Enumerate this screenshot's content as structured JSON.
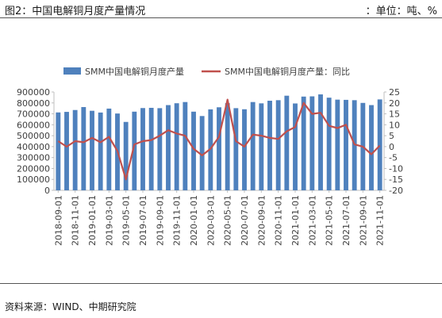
{
  "header": {
    "figure_title": "图2：中国电解铜月度产量情况",
    "unit": "：单位：吨、%"
  },
  "footer": {
    "source": "资料来源：WIND、中期研究院"
  },
  "colors": {
    "bar": "#4f81bd",
    "line": "#c0504d",
    "axis": "#bfbfbf",
    "text": "#404040"
  },
  "chart_data": {
    "type": "bar",
    "title": "",
    "xlabel": "",
    "ylabel": "",
    "legend_position": "top",
    "grid": false,
    "x_tick_labels": [
      "2018-09-01",
      "2018-11-01",
      "2019-01-01",
      "2019-03-01",
      "2019-05-01",
      "2019-07-01",
      "2019-09-01",
      "2019-11-01",
      "2020-01-01",
      "2020-03-01",
      "2020-05-01",
      "2020-07-01",
      "2020-09-01",
      "2020-11-01",
      "2021-01-01",
      "2021-03-01",
      "2021-05-01",
      "2021-07-01",
      "2021-09-01",
      "2021-11-01"
    ],
    "y_left": {
      "ylim": [
        0,
        900000
      ],
      "ticks": [
        0,
        100000,
        200000,
        300000,
        400000,
        500000,
        600000,
        700000,
        800000,
        900000
      ]
    },
    "y_right": {
      "ylim": [
        -20,
        25
      ],
      "ticks": [
        -20,
        -15,
        -10,
        -5,
        0,
        5,
        10,
        15,
        20,
        25
      ]
    },
    "categories": [
      "2018-09",
      "2018-10",
      "2018-11",
      "2018-12",
      "2019-01",
      "2019-02",
      "2019-03",
      "2019-04",
      "2019-05",
      "2019-06",
      "2019-07",
      "2019-08",
      "2019-09",
      "2019-10",
      "2019-11",
      "2019-12",
      "2020-01",
      "2020-02",
      "2020-03",
      "2020-04",
      "2020-05",
      "2020-06",
      "2020-07",
      "2020-08",
      "2020-09",
      "2020-10",
      "2020-11",
      "2020-12",
      "2021-01",
      "2021-02",
      "2021-03",
      "2021-04",
      "2021-05",
      "2021-06",
      "2021-07",
      "2021-08",
      "2021-09",
      "2021-10",
      "2021-11"
    ],
    "series": [
      {
        "name": "SMM中国电解铜月度产量",
        "type": "bar",
        "axis": "left",
        "values": [
          713000,
          718000,
          735000,
          762000,
          728000,
          712000,
          748000,
          703000,
          626000,
          720000,
          753000,
          755000,
          752000,
          780000,
          797000,
          808000,
          720000,
          680000,
          741000,
          760000,
          798000,
          752000,
          742000,
          808000,
          796000,
          820000,
          825000,
          866000,
          795000,
          858000,
          860000,
          878000,
          848000,
          830000,
          828000,
          825000,
          800000,
          780000,
          832000
        ]
      },
      {
        "name": "SMM中国电解铜月度产量：同比",
        "type": "line",
        "axis": "right",
        "values": [
          2.5,
          0,
          2.5,
          2,
          4,
          2,
          4.5,
          -2,
          -15,
          1,
          2.5,
          3,
          5,
          7.5,
          6,
          5,
          -1,
          -4,
          -1,
          4.5,
          21.5,
          2.5,
          0,
          5.5,
          5,
          4,
          3.5,
          7,
          9,
          20,
          15,
          15.5,
          9.5,
          8.5,
          10,
          1,
          0,
          -3.5,
          0.5
        ]
      }
    ]
  }
}
